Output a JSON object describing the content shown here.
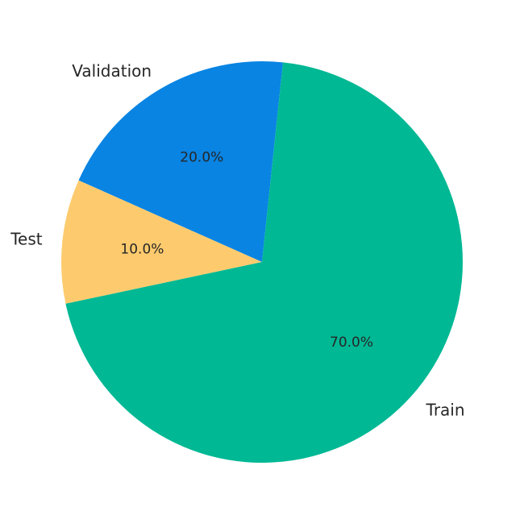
{
  "chart_data": {
    "type": "pie",
    "start_angle_deg": 84,
    "direction": "counterclockwise",
    "slices": [
      {
        "label": "Validation",
        "value": 20,
        "pct_label": "20.0%",
        "color": "#0984e3"
      },
      {
        "label": "Test",
        "value": 10,
        "pct_label": "10.0%",
        "color": "#fdcb6e"
      },
      {
        "label": "Train",
        "value": 70,
        "pct_label": "70.0%",
        "color": "#00b894"
      }
    ]
  }
}
